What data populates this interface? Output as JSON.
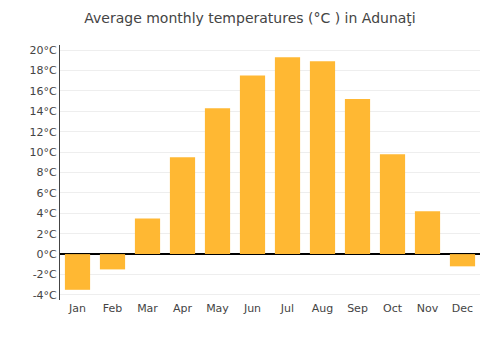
{
  "chart_data": {
    "type": "bar",
    "title": "Average monthly temperatures (°C ) in Adunaţi",
    "categories": [
      "Jan",
      "Feb",
      "Mar",
      "Apr",
      "May",
      "Jun",
      "Jul",
      "Aug",
      "Sep",
      "Oct",
      "Nov",
      "Dec"
    ],
    "values": [
      -3.5,
      -1.5,
      3.5,
      9.5,
      14.3,
      17.5,
      19.3,
      18.9,
      15.2,
      9.8,
      4.2,
      -1.2
    ],
    "color": "#FFB833",
    "ylim": [
      -4.5,
      20.5
    ],
    "yticks": [
      {
        "value": -4,
        "label": "-4°C"
      },
      {
        "value": -2,
        "label": "-2°C"
      },
      {
        "value": 0,
        "label": "0°C"
      },
      {
        "value": 2,
        "label": "2°C"
      },
      {
        "value": 4,
        "label": "4°C"
      },
      {
        "value": 6,
        "label": "6°C"
      },
      {
        "value": 8,
        "label": "8°C"
      },
      {
        "value": 10,
        "label": "10°C"
      },
      {
        "value": 12,
        "label": "12°C"
      },
      {
        "value": 14,
        "label": "14°C"
      },
      {
        "value": 16,
        "label": "16°C"
      },
      {
        "value": 18,
        "label": "18°C"
      },
      {
        "value": 20,
        "label": "20°C"
      }
    ],
    "grid": true
  }
}
